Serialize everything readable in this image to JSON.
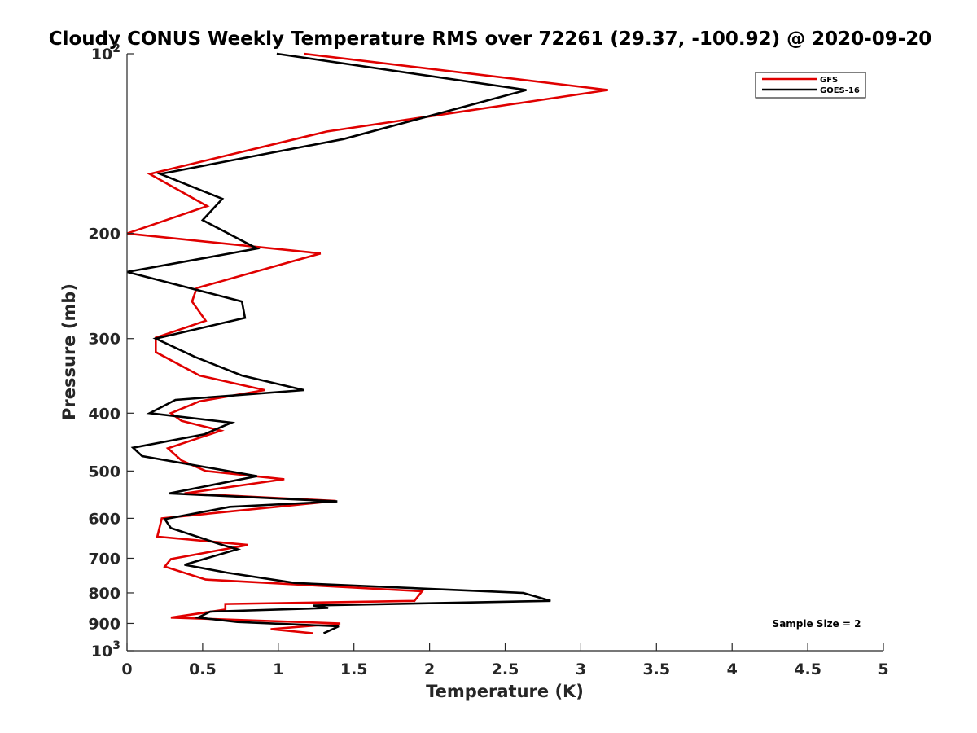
{
  "chart_data": {
    "type": "line",
    "title": "Cloudy CONUS Weekly Temperature RMS over 72261 (29.37, -100.92) @ 2020-09-20",
    "xlabel": "Temperature (K)",
    "ylabel": "Pressure (mb)",
    "xlim": [
      0,
      5
    ],
    "ylim": [
      100,
      1000
    ],
    "yscale": "log",
    "yreversed": true,
    "x_ticks": [
      0,
      0.5,
      1,
      1.5,
      2,
      2.5,
      3,
      3.5,
      4,
      4.5,
      5
    ],
    "x_tick_labels": [
      "0",
      "0.5",
      "1",
      "1.5",
      "2",
      "2.5",
      "3",
      "3.5",
      "4",
      "4.5",
      "5"
    ],
    "y_ticks": [
      100,
      200,
      300,
      400,
      500,
      600,
      700,
      800,
      900,
      1000
    ],
    "y_tick_labels": [
      {
        "base": "10",
        "exp": "2"
      },
      {
        "base": "200",
        "exp": ""
      },
      {
        "base": "300",
        "exp": ""
      },
      {
        "base": "400",
        "exp": ""
      },
      {
        "base": "500",
        "exp": ""
      },
      {
        "base": "600",
        "exp": ""
      },
      {
        "base": "700",
        "exp": ""
      },
      {
        "base": "800",
        "exp": ""
      },
      {
        "base": "900",
        "exp": ""
      },
      {
        "base": "10",
        "exp": "3"
      }
    ],
    "legend_position": "top-right",
    "annotation": "Sample Size = 2",
    "series": [
      {
        "name": "GFS",
        "color": "#e00000",
        "points": [
          [
            1.17,
            100
          ],
          [
            3.18,
            115
          ],
          [
            1.32,
            135
          ],
          [
            0.15,
            159
          ],
          [
            0.53,
            180
          ],
          [
            0.0,
            200
          ],
          [
            1.28,
            216
          ],
          [
            0.46,
            247
          ],
          [
            0.43,
            260
          ],
          [
            0.52,
            280
          ],
          [
            0.19,
            299
          ],
          [
            0.19,
            316
          ],
          [
            0.48,
            346
          ],
          [
            0.91,
            366
          ],
          [
            0.48,
            382
          ],
          [
            0.29,
            400
          ],
          [
            0.36,
            412
          ],
          [
            0.62,
            428
          ],
          [
            0.27,
            458
          ],
          [
            0.36,
            480
          ],
          [
            0.52,
            500
          ],
          [
            1.04,
            516
          ],
          [
            0.38,
            545
          ],
          [
            1.38,
            561
          ],
          [
            0.23,
            600
          ],
          [
            0.2,
            644
          ],
          [
            0.8,
            665
          ],
          [
            0.29,
            702
          ],
          [
            0.25,
            723
          ],
          [
            0.52,
            760
          ],
          [
            1.95,
            795
          ],
          [
            1.9,
            825
          ],
          [
            0.65,
            835
          ],
          [
            0.65,
            853
          ],
          [
            0.29,
            880
          ],
          [
            1.41,
            900
          ],
          [
            0.95,
            920
          ],
          [
            1.23,
            935
          ]
        ]
      },
      {
        "name": "GOES-16",
        "color": "#000000",
        "points": [
          [
            0.99,
            100
          ],
          [
            2.64,
            115
          ],
          [
            1.43,
            139
          ],
          [
            0.22,
            159
          ],
          [
            0.63,
            175
          ],
          [
            0.5,
            190
          ],
          [
            0.86,
            212
          ],
          [
            0.0,
            232
          ],
          [
            0.76,
            260
          ],
          [
            0.78,
            277
          ],
          [
            0.19,
            300
          ],
          [
            0.45,
            322
          ],
          [
            0.76,
            346
          ],
          [
            1.17,
            366
          ],
          [
            0.32,
            380
          ],
          [
            0.15,
            400
          ],
          [
            0.69,
            415
          ],
          [
            0.51,
            434
          ],
          [
            0.04,
            457
          ],
          [
            0.1,
            472
          ],
          [
            0.86,
            510
          ],
          [
            0.28,
            545
          ],
          [
            1.39,
            562
          ],
          [
            0.68,
            574
          ],
          [
            0.25,
            602
          ],
          [
            0.29,
            623
          ],
          [
            0.63,
            665
          ],
          [
            0.73,
            676
          ],
          [
            0.38,
            718
          ],
          [
            0.66,
            740
          ],
          [
            1.11,
            770
          ],
          [
            2.62,
            800
          ],
          [
            2.8,
            825
          ],
          [
            1.23,
            840
          ],
          [
            1.33,
            848
          ],
          [
            0.55,
            860
          ],
          [
            0.47,
            880
          ],
          [
            0.73,
            895
          ],
          [
            1.4,
            910
          ],
          [
            1.3,
            935
          ]
        ]
      }
    ]
  }
}
